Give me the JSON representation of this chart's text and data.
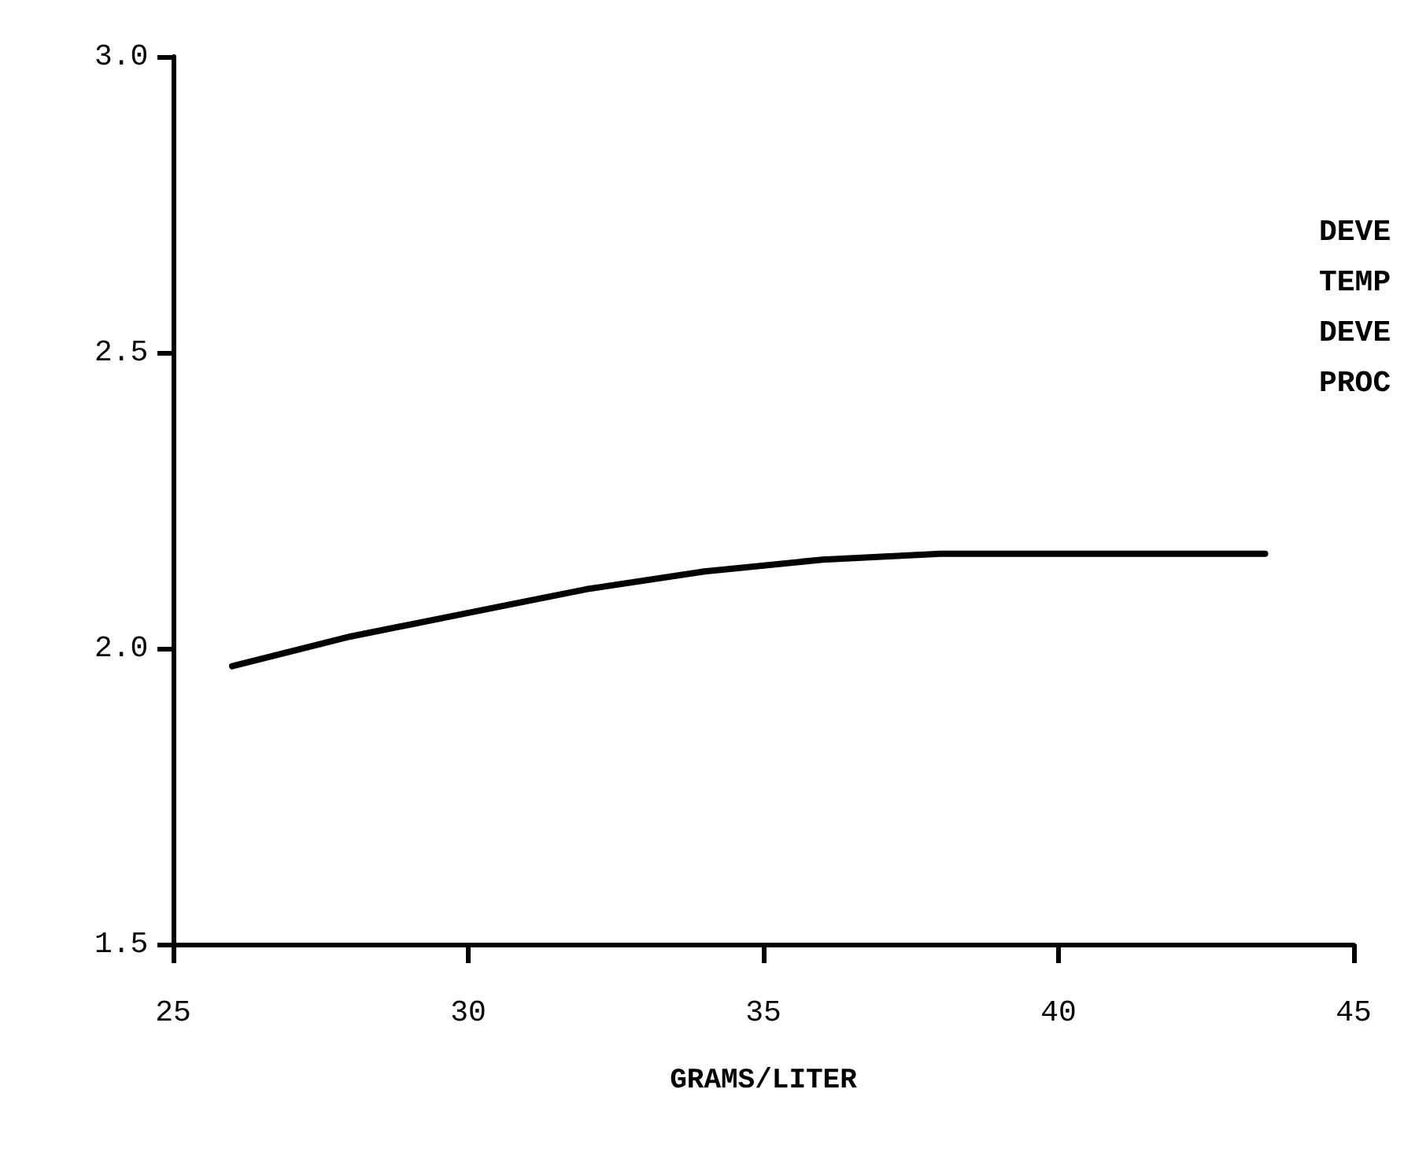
{
  "chart_data": {
    "type": "line",
    "xlabel": "GRAMS/LITER",
    "x": [
      26,
      28,
      30,
      32,
      34,
      36,
      38,
      40,
      43.5
    ],
    "series": [
      {
        "color": "#000000",
        "values": [
          1.97,
          2.02,
          2.06,
          2.1,
          2.13,
          2.15,
          2.16,
          2.16,
          2.16
        ]
      }
    ],
    "xlim": [
      25,
      45
    ],
    "xticks": [
      25,
      30,
      35,
      40,
      45
    ],
    "ylim": [
      1.5,
      3.0
    ],
    "yticks": [
      {
        "value": 1.5,
        "label": "1.5"
      },
      {
        "value": 2.0,
        "label": "2.0"
      },
      {
        "value": 2.5,
        "label": "2.5"
      },
      {
        "value": 3.0,
        "label": "3.0"
      }
    ],
    "annotations": [
      "DEVE",
      "TEMP",
      "DEVE",
      "PROC"
    ],
    "grid": false,
    "marker": "none",
    "line_style": "solid"
  }
}
